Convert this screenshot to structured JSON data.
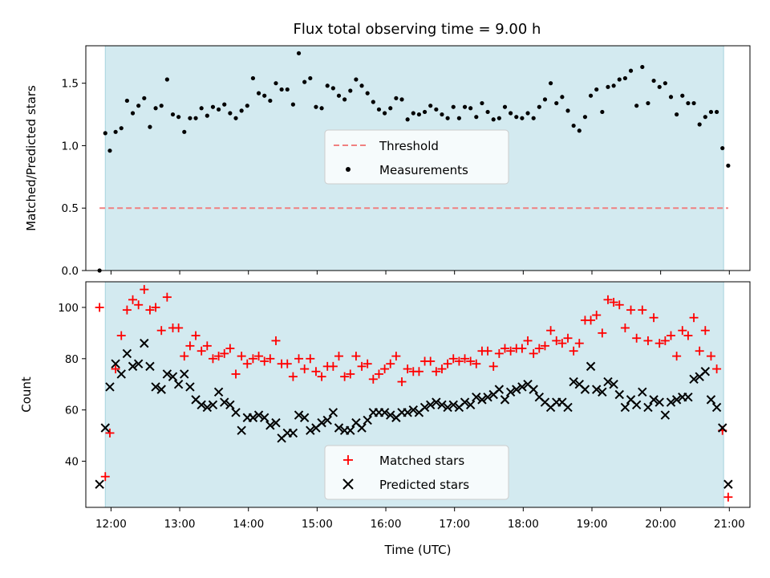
{
  "chart_data": [
    {
      "type": "scatter",
      "title": "Flux total observing time = 9.00 h",
      "xlabel": "",
      "ylabel": "Matched/Predicted stars",
      "xlim": [
        "11:38",
        "21:18"
      ],
      "ylim": [
        0,
        1.8
      ],
      "yticks": [
        0.0,
        0.5,
        1.0,
        1.5
      ],
      "ytick_labels": [
        "0.0",
        "0.5",
        "1.0",
        "1.5"
      ],
      "observing_window": [
        "11:55",
        "20:55"
      ],
      "threshold": 0.5,
      "legend": [
        "Threshold",
        "Measurements"
      ],
      "legend_position": "center",
      "colors": {
        "threshold": "#f08080",
        "measurements": "#000000",
        "window": "#d3eaf0",
        "window_edge": "#a8d4de"
      },
      "series": [
        {
          "name": "Measurements",
          "x": [
            "11:50",
            "11:55",
            "11:59",
            "12:04",
            "12:09",
            "12:14",
            "12:19",
            "12:24",
            "12:29",
            "12:34",
            "12:39",
            "12:44",
            "12:49",
            "12:54",
            "12:59",
            "13:04",
            "13:09",
            "13:14",
            "13:19",
            "13:24",
            "13:29",
            "13:34",
            "13:39",
            "13:44",
            "13:49",
            "13:54",
            "13:59",
            "14:04",
            "14:09",
            "14:14",
            "14:19",
            "14:24",
            "14:29",
            "14:34",
            "14:39",
            "14:44",
            "14:49",
            "14:54",
            "14:59",
            "15:04",
            "15:09",
            "15:14",
            "15:19",
            "15:24",
            "15:29",
            "15:34",
            "15:39",
            "15:44",
            "15:49",
            "15:54",
            "15:59",
            "16:04",
            "16:09",
            "16:14",
            "16:19",
            "16:24",
            "16:29",
            "16:34",
            "16:39",
            "16:44",
            "16:49",
            "16:54",
            "16:59",
            "17:04",
            "17:09",
            "17:14",
            "17:19",
            "17:24",
            "17:29",
            "17:34",
            "17:39",
            "17:44",
            "17:49",
            "17:54",
            "17:59",
            "18:04",
            "18:09",
            "18:14",
            "18:19",
            "18:24",
            "18:29",
            "18:34",
            "18:39",
            "18:44",
            "18:49",
            "18:54",
            "18:59",
            "19:04",
            "19:09",
            "19:14",
            "19:19",
            "19:24",
            "19:29",
            "19:34",
            "19:39",
            "19:44",
            "19:49",
            "19:54",
            "19:59",
            "20:04",
            "20:09",
            "20:14",
            "20:19",
            "20:24",
            "20:29",
            "20:34",
            "20:39",
            "20:44",
            "20:49",
            "20:54",
            "20:59"
          ],
          "y": [
            0.0,
            1.1,
            0.96,
            1.11,
            1.14,
            1.36,
            1.26,
            1.32,
            1.38,
            1.15,
            1.3,
            1.32,
            1.53,
            1.25,
            1.23,
            1.11,
            1.22,
            1.22,
            1.3,
            1.24,
            1.31,
            1.29,
            1.33,
            1.26,
            1.22,
            1.28,
            1.32,
            1.54,
            1.42,
            1.4,
            1.36,
            1.5,
            1.45,
            1.45,
            1.33,
            1.74,
            1.51,
            1.54,
            1.31,
            1.3,
            1.48,
            1.46,
            1.4,
            1.37,
            1.44,
            1.53,
            1.48,
            1.42,
            1.35,
            1.29,
            1.26,
            1.3,
            1.38,
            1.37,
            1.21,
            1.26,
            1.25,
            1.27,
            1.32,
            1.29,
            1.25,
            1.22,
            1.31,
            1.22,
            1.31,
            1.3,
            1.23,
            1.34,
            1.27,
            1.21,
            1.22,
            1.31,
            1.26,
            1.23,
            1.22,
            1.26,
            1.22,
            1.31,
            1.37,
            1.5,
            1.34,
            1.39,
            1.28,
            1.16,
            1.12,
            1.23,
            1.4,
            1.45,
            1.27,
            1.47,
            1.48,
            1.53,
            1.54,
            1.6,
            1.32,
            1.63,
            1.34,
            1.52,
            1.47,
            1.5,
            1.39,
            1.25,
            1.4,
            1.34,
            1.34,
            1.17,
            1.23,
            1.27,
            1.27,
            0.98,
            0.84
          ]
        }
      ]
    },
    {
      "type": "scatter",
      "title": "",
      "xlabel": "Time (UTC)",
      "ylabel": "Count",
      "xlim": [
        "11:38",
        "21:18"
      ],
      "ylim": [
        22,
        110
      ],
      "yticks": [
        40,
        60,
        80,
        100
      ],
      "ytick_labels": [
        "40",
        "60",
        "80",
        "100"
      ],
      "xticks": [
        "12:00",
        "13:00",
        "14:00",
        "15:00",
        "16:00",
        "17:00",
        "18:00",
        "19:00",
        "20:00",
        "21:00"
      ],
      "xtick_labels": [
        "12:00",
        "13:00",
        "14:00",
        "15:00",
        "16:00",
        "17:00",
        "18:00",
        "19:00",
        "20:00",
        "21:00"
      ],
      "observing_window": [
        "11:55",
        "20:55"
      ],
      "legend": [
        "Matched stars",
        "Predicted stars"
      ],
      "legend_position": "lower center",
      "colors": {
        "matched": "#ff0000",
        "predicted": "#000000",
        "window": "#d3eaf0",
        "window_edge": "#a8d4de"
      },
      "series": [
        {
          "name": "Matched stars",
          "x": [
            "11:50",
            "11:55",
            "11:59",
            "12:04",
            "12:09",
            "12:14",
            "12:19",
            "12:24",
            "12:29",
            "12:34",
            "12:39",
            "12:44",
            "12:49",
            "12:54",
            "12:59",
            "13:04",
            "13:09",
            "13:14",
            "13:19",
            "13:24",
            "13:29",
            "13:34",
            "13:39",
            "13:44",
            "13:49",
            "13:54",
            "13:59",
            "14:04",
            "14:09",
            "14:14",
            "14:19",
            "14:24",
            "14:29",
            "14:34",
            "14:39",
            "14:44",
            "14:49",
            "14:54",
            "14:59",
            "15:04",
            "15:09",
            "15:14",
            "15:19",
            "15:24",
            "15:29",
            "15:34",
            "15:39",
            "15:44",
            "15:49",
            "15:54",
            "15:59",
            "16:04",
            "16:09",
            "16:14",
            "16:19",
            "16:24",
            "16:29",
            "16:34",
            "16:39",
            "16:44",
            "16:49",
            "16:54",
            "16:59",
            "17:04",
            "17:09",
            "17:14",
            "17:19",
            "17:24",
            "17:29",
            "17:34",
            "17:39",
            "17:44",
            "17:49",
            "17:54",
            "17:59",
            "18:04",
            "18:09",
            "18:14",
            "18:19",
            "18:24",
            "18:29",
            "18:34",
            "18:39",
            "18:44",
            "18:49",
            "18:54",
            "18:59",
            "19:04",
            "19:09",
            "19:14",
            "19:19",
            "19:24",
            "19:29",
            "19:34",
            "19:39",
            "19:44",
            "19:49",
            "19:54",
            "19:59",
            "20:04",
            "20:09",
            "20:14",
            "20:19",
            "20:24",
            "20:29",
            "20:34",
            "20:39",
            "20:44",
            "20:49",
            "20:54",
            "20:59"
          ],
          "y": [
            100,
            34,
            51,
            76,
            89,
            99,
            103,
            101,
            107,
            99,
            100,
            91,
            104,
            92,
            92,
            81,
            85,
            89,
            83,
            85,
            80,
            81,
            82,
            84,
            74,
            81,
            78,
            80,
            81,
            79,
            80,
            87,
            78,
            78,
            73,
            80,
            76,
            80,
            75,
            73,
            77,
            77,
            81,
            73,
            74,
            81,
            77,
            78,
            72,
            74,
            76,
            78,
            81,
            71,
            76,
            75,
            75,
            79,
            79,
            75,
            76,
            78,
            80,
            79,
            80,
            79,
            78,
            83,
            83,
            77,
            82,
            84,
            83,
            84,
            84,
            87,
            82,
            84,
            85,
            91,
            87,
            86,
            88,
            83,
            86,
            95,
            95,
            97,
            90,
            103,
            102,
            101,
            92,
            99,
            88,
            99,
            87,
            96,
            86,
            87,
            89,
            81,
            91,
            89,
            96,
            83,
            91,
            81,
            76,
            52,
            26
          ]
        },
        {
          "name": "Predicted stars",
          "x": [
            "11:50",
            "11:55",
            "11:59",
            "12:04",
            "12:09",
            "12:14",
            "12:19",
            "12:24",
            "12:29",
            "12:34",
            "12:39",
            "12:44",
            "12:49",
            "12:54",
            "12:59",
            "13:04",
            "13:09",
            "13:14",
            "13:19",
            "13:24",
            "13:29",
            "13:34",
            "13:39",
            "13:44",
            "13:49",
            "13:54",
            "13:59",
            "14:04",
            "14:09",
            "14:14",
            "14:19",
            "14:24",
            "14:29",
            "14:34",
            "14:39",
            "14:44",
            "14:49",
            "14:54",
            "14:59",
            "15:04",
            "15:09",
            "15:14",
            "15:19",
            "15:24",
            "15:29",
            "15:34",
            "15:39",
            "15:44",
            "15:49",
            "15:54",
            "15:59",
            "16:04",
            "16:09",
            "16:14",
            "16:19",
            "16:24",
            "16:29",
            "16:34",
            "16:39",
            "16:44",
            "16:49",
            "16:54",
            "16:59",
            "17:04",
            "17:09",
            "17:14",
            "17:19",
            "17:24",
            "17:29",
            "17:34",
            "17:39",
            "17:44",
            "17:49",
            "17:54",
            "17:59",
            "18:04",
            "18:09",
            "18:14",
            "18:19",
            "18:24",
            "18:29",
            "18:34",
            "18:39",
            "18:44",
            "18:49",
            "18:54",
            "18:59",
            "19:04",
            "19:09",
            "19:14",
            "19:19",
            "19:24",
            "19:29",
            "19:34",
            "19:39",
            "19:44",
            "19:49",
            "19:54",
            "19:59",
            "20:04",
            "20:09",
            "20:14",
            "20:19",
            "20:24",
            "20:29",
            "20:34",
            "20:39",
            "20:44",
            "20:49",
            "20:54",
            "20:59"
          ],
          "y": [
            31,
            53,
            69,
            78,
            74,
            82,
            77,
            78,
            86,
            77,
            69,
            68,
            74,
            73,
            70,
            74,
            69,
            64,
            62,
            61,
            62,
            67,
            63,
            62,
            59,
            52,
            57,
            57,
            58,
            57,
            54,
            55,
            49,
            51,
            51,
            58,
            57,
            52,
            53,
            55,
            56,
            59,
            53,
            52,
            52,
            55,
            53,
            56,
            59,
            59,
            59,
            58,
            57,
            59,
            59,
            60,
            59,
            61,
            62,
            63,
            62,
            61,
            62,
            61,
            63,
            62,
            65,
            64,
            65,
            66,
            68,
            64,
            67,
            68,
            69,
            70,
            68,
            65,
            63,
            61,
            63,
            63,
            61,
            71,
            70,
            68,
            77,
            68,
            67,
            71,
            70,
            66,
            61,
            64,
            62,
            67,
            61,
            64,
            63,
            58,
            63,
            64,
            65,
            65,
            72,
            73,
            75,
            64,
            61,
            53,
            31
          ]
        }
      ]
    }
  ]
}
